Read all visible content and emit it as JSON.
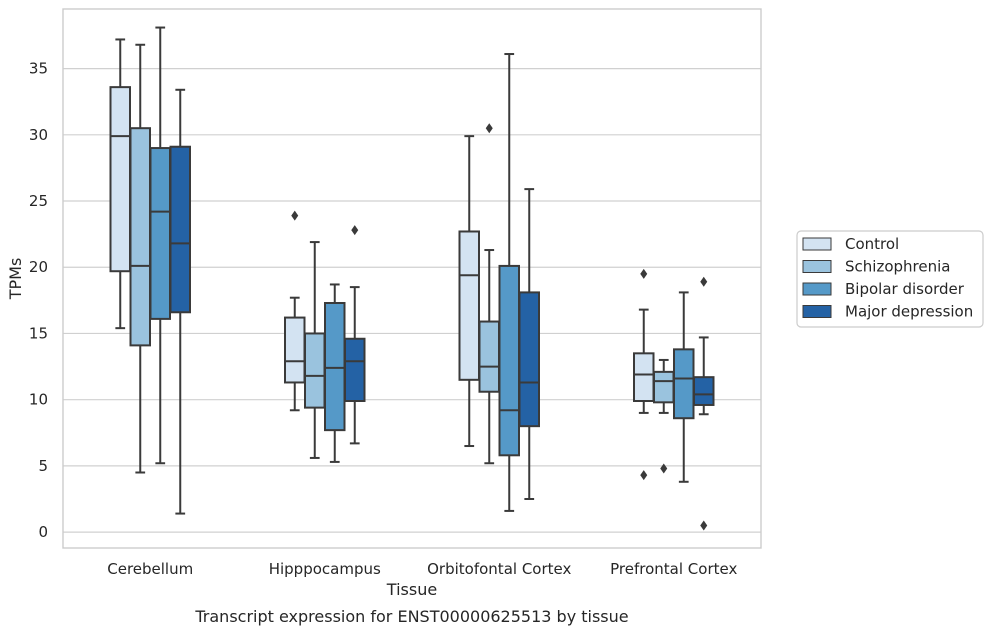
{
  "caption": "Transcript expression for ENST00000625513 by tissue",
  "chart_data": {
    "type": "boxplot",
    "xlabel": "Tissue",
    "ylabel": "TPMs",
    "ylim": [
      -1.2,
      39.5
    ],
    "yticks": [
      0,
      5,
      10,
      15,
      20,
      25,
      30,
      35
    ],
    "grid": "horizontal",
    "legend_position": "right",
    "categories": [
      "Cerebellum",
      "Hipppocampus",
      "Orbitofontal Cortex",
      "Prefrontal Cortex"
    ],
    "series": [
      {
        "name": "Control",
        "color": "#d3e3f2",
        "boxes": [
          {
            "whislo": 15.4,
            "q1": 19.7,
            "med": 29.9,
            "q3": 33.6,
            "whishi": 37.2,
            "fliers": []
          },
          {
            "whislo": 9.2,
            "q1": 11.3,
            "med": 12.9,
            "q3": 16.2,
            "whishi": 17.7,
            "fliers": [
              23.9
            ]
          },
          {
            "whislo": 6.5,
            "q1": 11.5,
            "med": 19.4,
            "q3": 22.7,
            "whishi": 29.9,
            "fliers": []
          },
          {
            "whislo": 9.0,
            "q1": 9.9,
            "med": 11.9,
            "q3": 13.5,
            "whishi": 16.8,
            "fliers": [
              19.5,
              4.3
            ]
          }
        ]
      },
      {
        "name": "Schizophrenia",
        "color": "#9ac3de",
        "boxes": [
          {
            "whislo": 4.5,
            "q1": 14.1,
            "med": 20.1,
            "q3": 30.5,
            "whishi": 36.8,
            "fliers": []
          },
          {
            "whislo": 5.6,
            "q1": 9.4,
            "med": 11.8,
            "q3": 15.0,
            "whishi": 21.9,
            "fliers": []
          },
          {
            "whislo": 5.2,
            "q1": 10.6,
            "med": 12.5,
            "q3": 15.9,
            "whishi": 21.3,
            "fliers": [
              30.5
            ]
          },
          {
            "whislo": 9.0,
            "q1": 9.8,
            "med": 11.4,
            "q3": 12.1,
            "whishi": 13.0,
            "fliers": [
              4.8
            ]
          }
        ]
      },
      {
        "name": "Bipolar disorder",
        "color": "#5599c8",
        "boxes": [
          {
            "whislo": 5.2,
            "q1": 16.1,
            "med": 24.2,
            "q3": 29.0,
            "whishi": 38.1,
            "fliers": []
          },
          {
            "whislo": 5.3,
            "q1": 7.7,
            "med": 12.4,
            "q3": 17.3,
            "whishi": 18.7,
            "fliers": []
          },
          {
            "whislo": 1.6,
            "q1": 5.8,
            "med": 9.2,
            "q3": 20.1,
            "whishi": 36.1,
            "fliers": []
          },
          {
            "whislo": 3.8,
            "q1": 8.6,
            "med": 11.6,
            "q3": 13.8,
            "whishi": 18.1,
            "fliers": []
          }
        ]
      },
      {
        "name": "Major depression",
        "color": "#2462a5",
        "boxes": [
          {
            "whislo": 1.4,
            "q1": 16.6,
            "med": 21.8,
            "q3": 29.1,
            "whishi": 33.4,
            "fliers": []
          },
          {
            "whislo": 6.7,
            "q1": 9.9,
            "med": 12.9,
            "q3": 14.6,
            "whishi": 18.5,
            "fliers": [
              22.8
            ]
          },
          {
            "whislo": 2.5,
            "q1": 8.0,
            "med": 11.3,
            "q3": 18.1,
            "whishi": 25.9,
            "fliers": []
          },
          {
            "whislo": 8.9,
            "q1": 9.6,
            "med": 10.4,
            "q3": 11.7,
            "whishi": 14.7,
            "fliers": [
              18.9,
              0.5
            ]
          }
        ]
      }
    ]
  }
}
